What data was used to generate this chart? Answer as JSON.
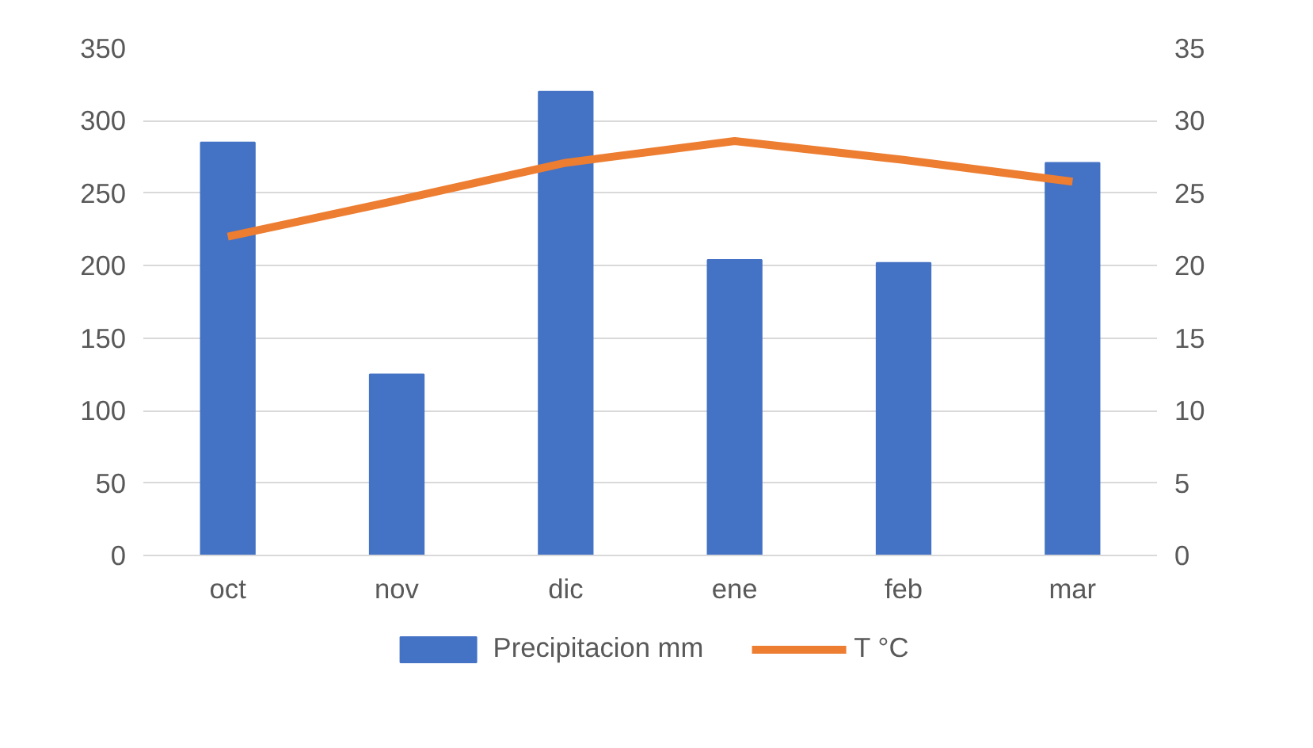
{
  "chart_data": {
    "type": "bar",
    "categories": [
      "oct",
      "nov",
      "dic",
      "ene",
      "feb",
      "mar"
    ],
    "series": [
      {
        "name": "Precipitacion mm",
        "type": "bar",
        "color": "#4472c4",
        "values": [
          285,
          125,
          320,
          204,
          202,
          271
        ]
      },
      {
        "name": "T °C",
        "type": "line",
        "axis": "y2",
        "color": "#ed7d31",
        "values": [
          22.0,
          24.5,
          27.1,
          28.6,
          27.3,
          25.8
        ]
      }
    ],
    "ylim": [
      0,
      350
    ],
    "yticks": [
      0,
      50,
      100,
      150,
      200,
      250,
      300,
      350
    ],
    "y2lim": [
      0,
      35
    ],
    "y2ticks": [
      0,
      5,
      10,
      15,
      20,
      25,
      30,
      35
    ],
    "grid": "y",
    "legend": "bottom",
    "line_style": "solid",
    "marker": "none"
  }
}
